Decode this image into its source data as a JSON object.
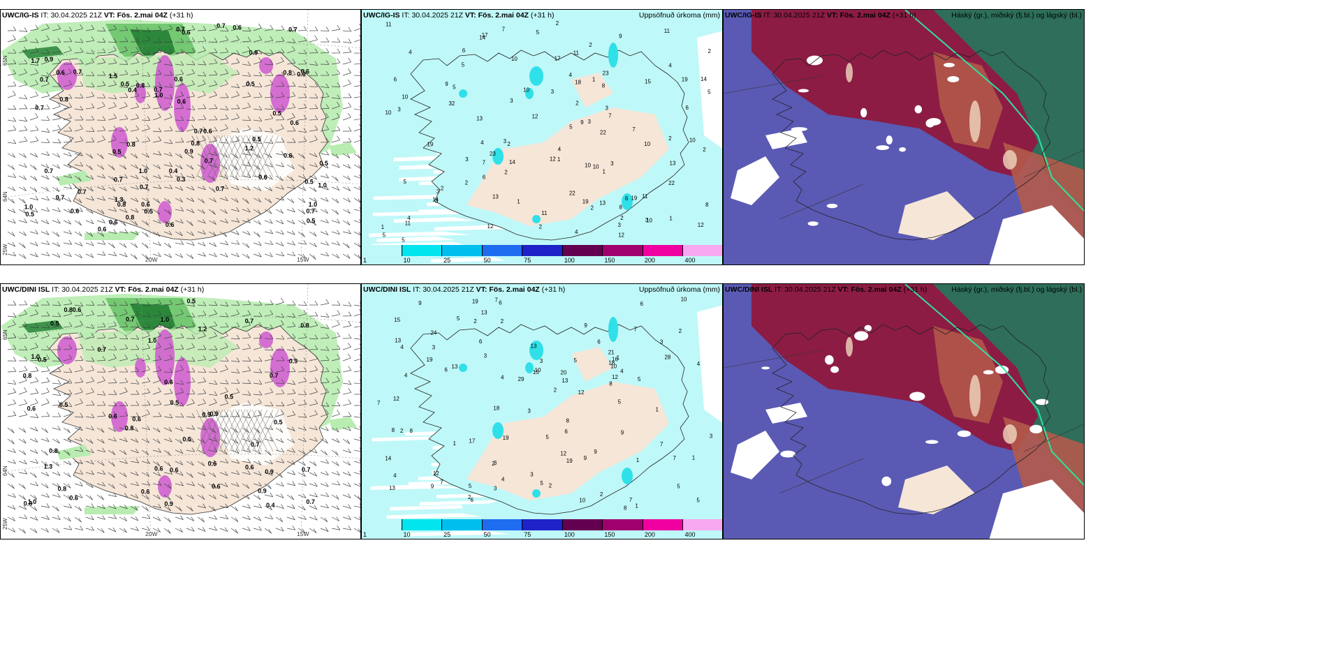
{
  "panels": [
    {
      "id": "p1",
      "model": "UWC/IG-IS",
      "it_label": "IT:",
      "it": "30.04.2025 21Z",
      "vt_label": "VT:",
      "vt": "Fös. 2.mai 04Z",
      "lead": "(+31 h)",
      "right": ""
    },
    {
      "id": "p2",
      "model": "UWC/IG-IS",
      "it_label": "IT:",
      "it": "30.04.2025 21Z",
      "vt_label": "VT:",
      "vt": "Fös. 2.mai 04Z",
      "lead": "(+31 h)",
      "right": "Uppsöfnuð úrkoma (mm)"
    },
    {
      "id": "p3",
      "model": "UWC/IG-IS",
      "it_label": "IT:",
      "it": "30.04.2025 21Z",
      "vt_label": "VT:",
      "vt": "Fös. 2.mai 04Z",
      "lead": "(+31 h)",
      "right": "Háský (gr.), miðský (fj.bl.) og lágský (bl.)"
    },
    {
      "id": "p4",
      "model": "UWC/DINI ISL",
      "it_label": "IT:",
      "it": "30.04.2025 21Z",
      "vt_label": "VT:",
      "vt": "Fös. 2.mai 04Z",
      "lead": "(+31 h)",
      "right": ""
    },
    {
      "id": "p5",
      "model": "UWC/DINI ISL",
      "it_label": "IT:",
      "it": "30.04.2025 21Z",
      "vt_label": "VT:",
      "vt": "Fös. 2.mai 04Z",
      "lead": "(+31 h)",
      "right": "Uppsöfnuð úrkoma (mm)"
    },
    {
      "id": "p6",
      "model": "UWC/DINI ISL",
      "it_label": "IT:",
      "it": "30.04.2025 21Z",
      "vt_label": "VT:",
      "vt": "Fös. 2.mai 04Z",
      "lead": "(+31 h)",
      "right": "Háský (gr.), miðský (fj.bl.) og lágský (bl.)"
    }
  ],
  "colorbar": {
    "labels": [
      "1",
      "10",
      "25",
      "50",
      "75",
      "100",
      "150",
      "200",
      "400"
    ],
    "colors": [
      "#bff8f8",
      "#00e5ee",
      "#00bfee",
      "#1e6cf0",
      "#1e22c8",
      "#640050",
      "#a0006e",
      "#f000a0",
      "#f8a8f0"
    ]
  },
  "axes": {
    "lon_20": "20W",
    "lon_15": "15W",
    "lat_65": "65N",
    "lat_64": "64N",
    "lon_25": "25W"
  },
  "colors": {
    "land": "#f5e6d8",
    "green_light": "#b8ecb0",
    "green_mid": "#6cc46a",
    "green_dark": "#1e7d30",
    "magenta": "#d060d0",
    "cyan_light": "#bff8f8",
    "cyan_mid": "#30e0e8",
    "high_cloud": "#5a5ab4",
    "mid_cloud": "#8c1c44",
    "low_cloud": "#b45a4a",
    "sea_green": "#2e6e5a"
  },
  "precip_labels_top": [
    "4",
    "6",
    "2",
    "3",
    "5",
    "3",
    "4",
    "5",
    "3",
    "4",
    "10",
    "14",
    "7",
    "10",
    "11",
    "6",
    "3",
    "7",
    "14",
    "13",
    "7",
    "3",
    "1",
    "8",
    "2",
    "18",
    "32",
    "5",
    "17",
    "19",
    "23",
    "15",
    "22",
    "13",
    "3",
    "23",
    "5",
    "3",
    "6",
    "2",
    "4",
    "10",
    "10",
    "7",
    "11",
    "19",
    "10",
    "11",
    "8",
    "11",
    "19",
    "9",
    "12",
    "6",
    "22",
    "22",
    "14",
    "13",
    "19",
    "3",
    "4",
    "2",
    "3",
    "2",
    "1",
    "3",
    "2",
    "5",
    "9",
    "11",
    "2",
    "2",
    "12",
    "3",
    "4",
    "10",
    "14",
    "12",
    "12",
    "11",
    "8",
    "17",
    "13",
    "10",
    "5",
    "2",
    "5",
    "5",
    "9",
    "10",
    "10",
    "12",
    "3",
    "4",
    "2",
    "1",
    "1",
    "6",
    "2",
    "1",
    "2",
    "1",
    "2"
  ],
  "precip_labels_bottom": [
    "5",
    "4",
    "4",
    "3",
    "6",
    "3",
    "6",
    "3",
    "5",
    "4",
    "3",
    "2",
    "3",
    "5",
    "4",
    "10",
    "15",
    "7",
    "12",
    "24",
    "28",
    "29",
    "12",
    "9",
    "13",
    "21",
    "16",
    "2",
    "1",
    "8",
    "6",
    "9",
    "6",
    "20",
    "13",
    "8",
    "2",
    "17",
    "5",
    "8",
    "6",
    "7",
    "13",
    "18",
    "2",
    "2",
    "1",
    "6",
    "5",
    "12",
    "19",
    "19",
    "13",
    "13",
    "12",
    "4",
    "2",
    "18",
    "19",
    "15",
    "14",
    "7",
    "2",
    "1",
    "3",
    "2",
    "4",
    "9",
    "10",
    "12",
    "19",
    "7",
    "1",
    "5",
    "9",
    "13",
    "1",
    "3",
    "2",
    "8",
    "9",
    "3",
    "10",
    "5",
    "3",
    "7",
    "10",
    "5",
    "8",
    "7",
    "5",
    "9",
    "6",
    "4",
    "1",
    "7"
  ],
  "wind_labels_top": [
    "0.6",
    "0.6",
    "0.5",
    "0.7",
    "0.7",
    "0.9",
    "0.7",
    "0.8",
    "0.7",
    "1.0",
    "0.7",
    "1.0",
    "0.5",
    "0.9",
    "0.7",
    "0.8",
    "0.3",
    "0.7",
    "0.5",
    "0.7",
    "1.0",
    "0.6",
    "0.8",
    "0.8",
    "0.6",
    "0.9",
    "0.7",
    "1.0",
    "0.6",
    "0.6",
    "0.5",
    "0.6",
    "0.5",
    "0.7",
    "0.7",
    "0.6",
    "0.5",
    "0.5",
    "1.7",
    "0.6",
    "1.5",
    "0.7",
    "0.8",
    "1.0",
    "0.6",
    "0.5",
    "1.3",
    "0.5",
    "0.8",
    "0.7",
    "0.6",
    "0.4",
    "0.6",
    "0.5",
    "0.6",
    "0.7",
    "0.4",
    "1.2",
    "0.6",
    "0.8",
    "0.7",
    "0.6",
    "0.7",
    "0.6"
  ],
  "wind_labels_bottom": [
    "0.6",
    "1.0",
    "0.6",
    "0.7",
    "0.5",
    "0.6",
    "0.4",
    "1.3",
    "0.9",
    "0.8",
    "0.6",
    "1.0",
    "0.9",
    "0.7",
    "0.5",
    "0.7",
    "0.5",
    "0.6",
    "0.8",
    "0.6",
    "0.6",
    "0.7",
    "0.8",
    "1.0",
    "1.2",
    "0.6",
    "0.8",
    "0.6",
    "0.5",
    "0.6",
    "0.5",
    "0.5",
    "0.8",
    "0.7",
    "0.9",
    "0.9",
    "0.6",
    "0.5",
    "0.9",
    "0.7",
    "0.6",
    "0.8",
    "1.0",
    "0.7",
    "0.5",
    "0.8",
    "0.9"
  ]
}
